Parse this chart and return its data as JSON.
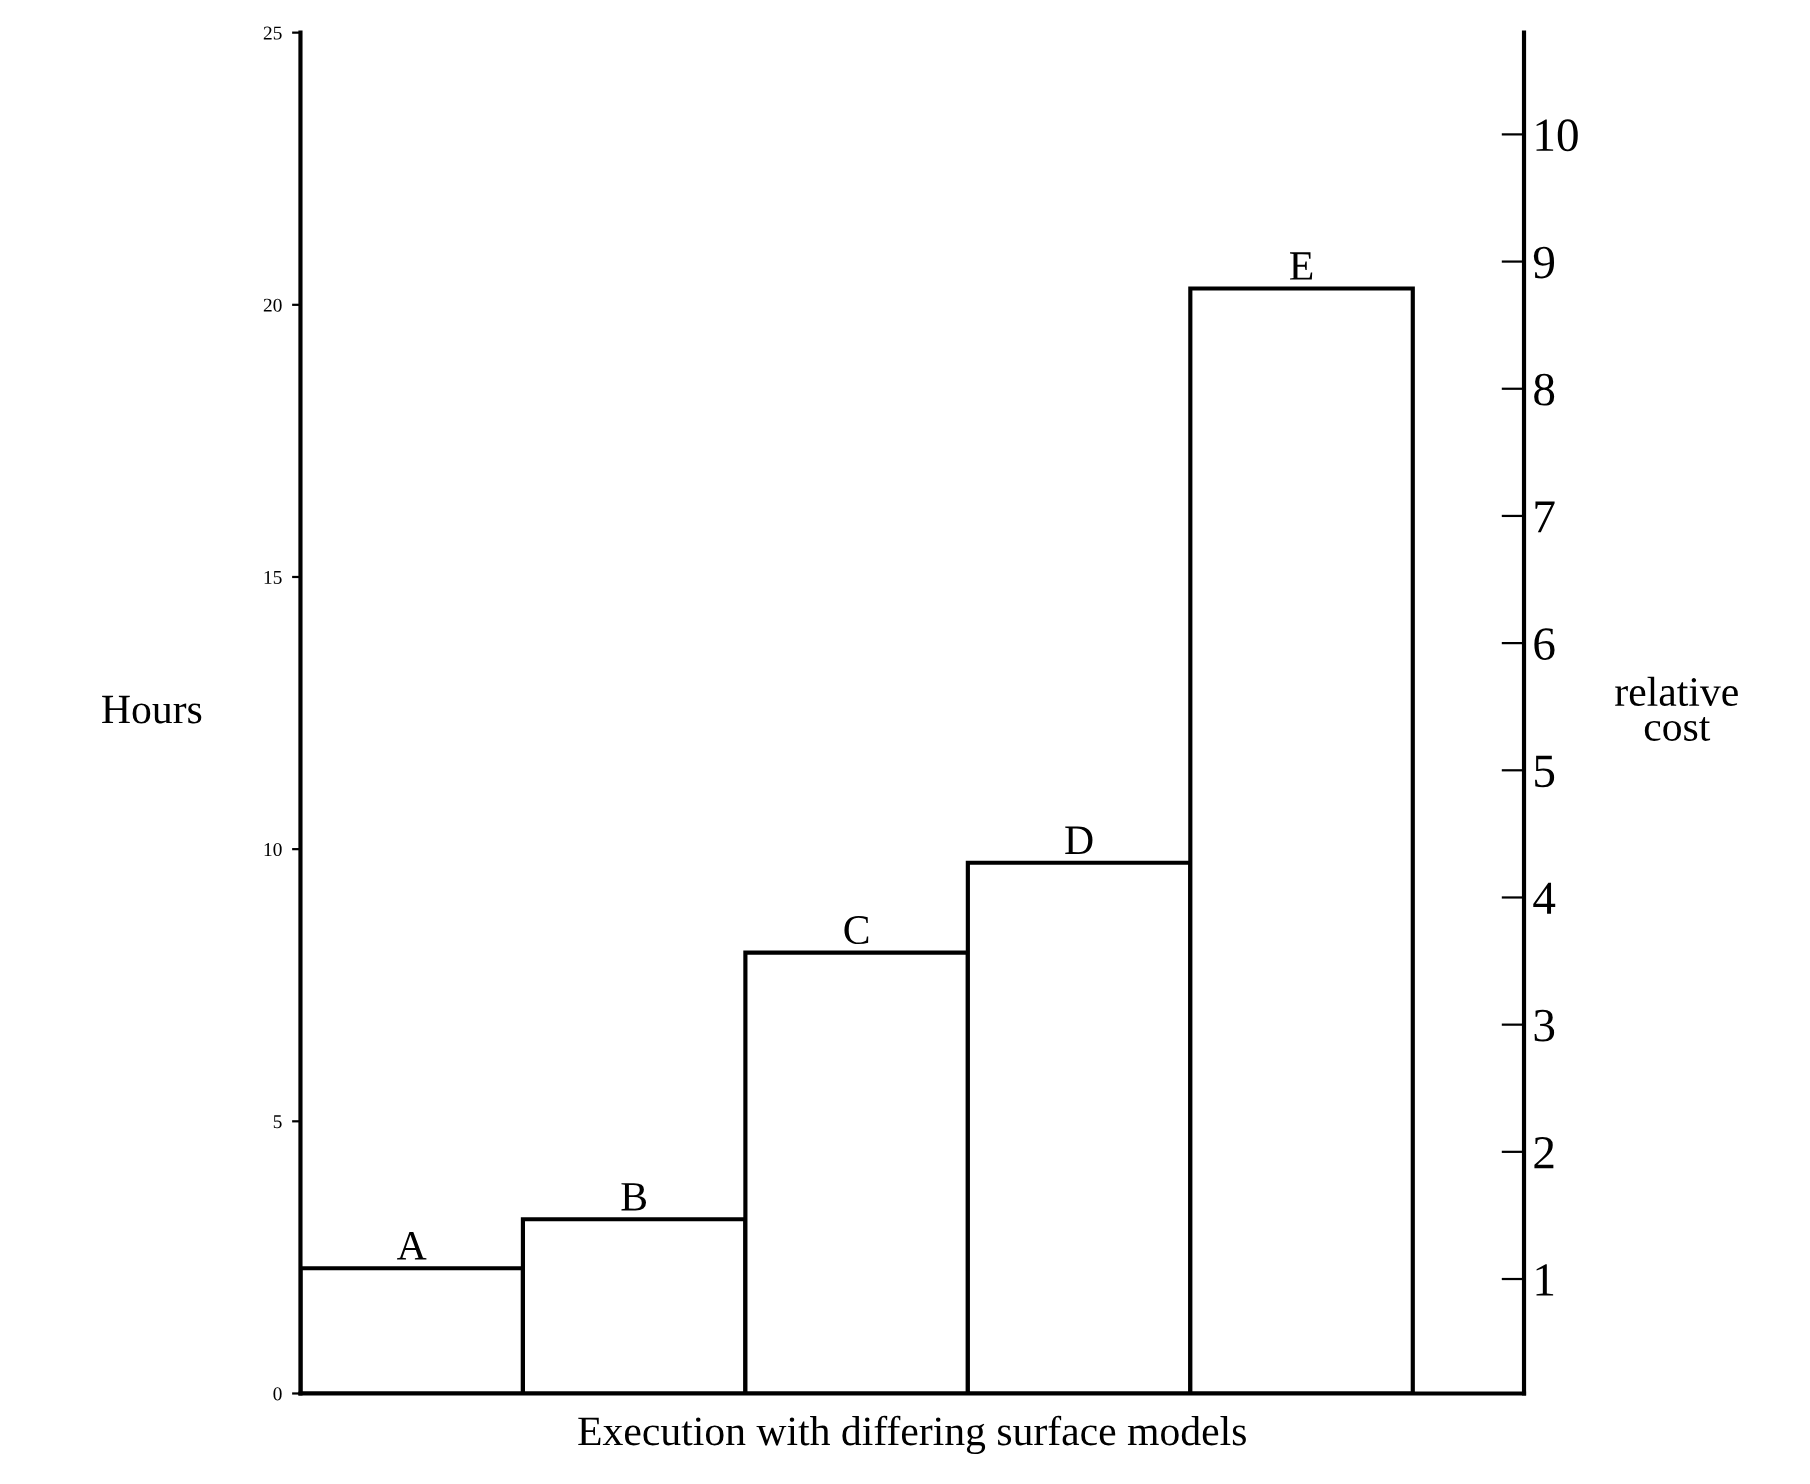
{
  "chart_data": {
    "type": "bar",
    "xlabel": "Execution with differing surface models",
    "ylabel": "Hours",
    "y2label": "relative cost",
    "categories": [
      "A",
      "B",
      "C",
      "D",
      "E"
    ],
    "values": [
      2.3,
      3.2,
      8.1,
      9.75,
      20.3
    ],
    "color": "#ffffff",
    "ylim": [
      0,
      25
    ],
    "yticks": [
      0,
      5,
      10,
      15,
      20,
      25
    ],
    "y2lim": [
      0.1,
      10.8
    ],
    "y2ticks": [
      1,
      2,
      3,
      4,
      5,
      6,
      7,
      8,
      9,
      10
    ],
    "grid": false
  }
}
